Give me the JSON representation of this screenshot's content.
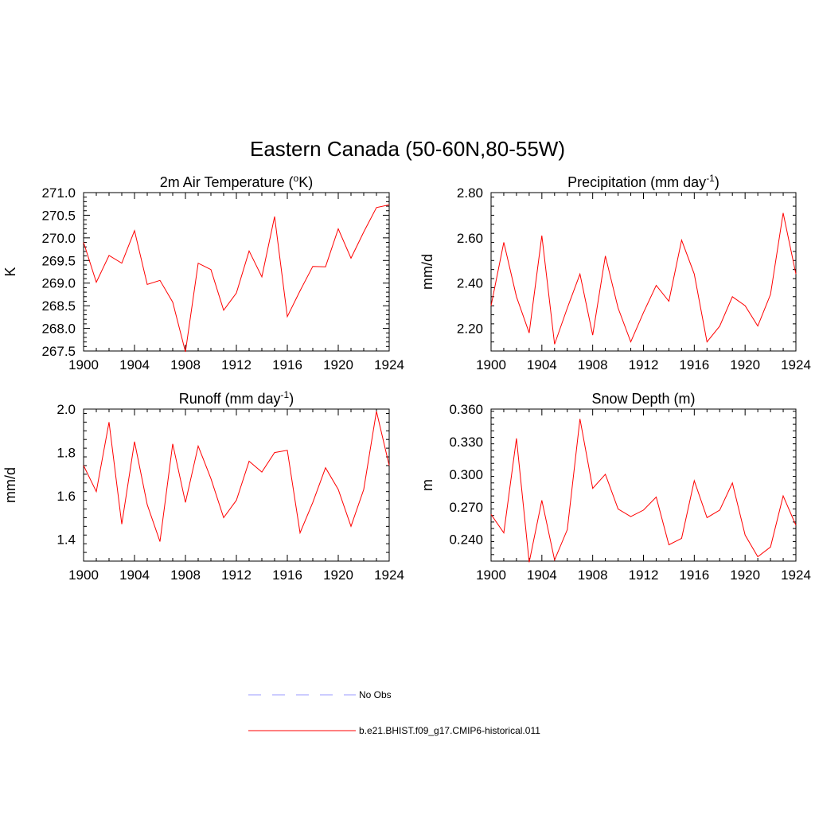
{
  "figure": {
    "title": "Eastern Canada (50-60N,80-55W)"
  },
  "legend": {
    "entries": [
      {
        "label": "No Obs",
        "color": "#9999ff",
        "dash": "dashed"
      },
      {
        "label": "b.e21.BHIST.f09_g17.CMIP6-historical.011",
        "color": "#ff0000",
        "dash": "solid"
      }
    ]
  },
  "chart_data": [
    {
      "type": "line",
      "title": "2m Air Temperature (°K)",
      "title_main": "2m Air Temperature (",
      "title_sup": "o",
      "title_tail": "K)",
      "xlabel": "",
      "ylabel": "K",
      "xlim": [
        1900,
        1924
      ],
      "ylim": [
        267.5,
        271.0
      ],
      "xticks": [
        1900,
        1904,
        1908,
        1912,
        1916,
        1920,
        1924
      ],
      "yticks": [
        "267.5",
        "268.0",
        "268.5",
        "269.0",
        "269.5",
        "270.0",
        "270.5",
        "271.0"
      ],
      "grid": false,
      "series": [
        {
          "color": "#ff0000",
          "x": [
            1900,
            1901,
            1902,
            1903,
            1904,
            1905,
            1906,
            1907,
            1908,
            1909,
            1910,
            1911,
            1912,
            1913,
            1914,
            1915,
            1916,
            1917,
            1918,
            1919,
            1920,
            1921,
            1922,
            1923,
            1924
          ],
          "y": [
            269.9,
            269.02,
            269.61,
            269.44,
            270.16,
            268.97,
            269.06,
            268.58,
            267.48,
            269.44,
            269.3,
            268.4,
            268.78,
            269.71,
            269.14,
            270.47,
            268.26,
            268.83,
            269.37,
            269.36,
            270.2,
            269.55,
            270.13,
            270.67,
            270.73
          ]
        }
      ]
    },
    {
      "type": "line",
      "title": "Precipitation (mm day-1)",
      "title_main": "Precipitation (mm day",
      "title_sup": "-1",
      "title_tail": ")",
      "xlabel": "",
      "ylabel": "mm/d",
      "xlim": [
        1900,
        1924
      ],
      "ylim": [
        2.1,
        2.8
      ],
      "xticks": [
        1900,
        1904,
        1908,
        1912,
        1916,
        1920,
        1924
      ],
      "yticks": [
        "2.20",
        "2.40",
        "2.60",
        "2.80"
      ],
      "grid": false,
      "series": [
        {
          "color": "#ff0000",
          "x": [
            1900,
            1901,
            1902,
            1903,
            1904,
            1905,
            1906,
            1907,
            1908,
            1909,
            1910,
            1911,
            1912,
            1913,
            1914,
            1915,
            1916,
            1917,
            1918,
            1919,
            1920,
            1921,
            1922,
            1923,
            1924
          ],
          "y": [
            2.3,
            2.58,
            2.34,
            2.18,
            2.61,
            2.13,
            2.29,
            2.44,
            2.17,
            2.52,
            2.29,
            2.14,
            2.27,
            2.39,
            2.32,
            2.59,
            2.44,
            2.14,
            2.21,
            2.34,
            2.3,
            2.21,
            2.35,
            2.71,
            2.44
          ]
        }
      ]
    },
    {
      "type": "line",
      "title": "Runoff (mm day-1)",
      "title_main": "Runoff (mm day",
      "title_sup": "-1",
      "title_tail": ")",
      "xlabel": "",
      "ylabel": "mm/d",
      "xlim": [
        1900,
        1924
      ],
      "ylim": [
        1.3,
        2.0
      ],
      "xticks": [
        1900,
        1904,
        1908,
        1912,
        1916,
        1920,
        1924
      ],
      "yticks": [
        "1.4",
        "1.6",
        "1.8",
        "2.0"
      ],
      "grid": false,
      "series": [
        {
          "color": "#ff0000",
          "x": [
            1900,
            1901,
            1902,
            1903,
            1904,
            1905,
            1906,
            1907,
            1908,
            1909,
            1910,
            1911,
            1912,
            1913,
            1914,
            1915,
            1916,
            1917,
            1918,
            1919,
            1920,
            1921,
            1922,
            1923,
            1924
          ],
          "y": [
            1.74,
            1.62,
            1.94,
            1.47,
            1.85,
            1.56,
            1.39,
            1.84,
            1.57,
            1.83,
            1.68,
            1.5,
            1.58,
            1.76,
            1.71,
            1.8,
            1.81,
            1.43,
            1.57,
            1.73,
            1.63,
            1.46,
            1.63,
            1.99,
            1.74
          ]
        }
      ]
    },
    {
      "type": "line",
      "title": "Snow Depth (m)",
      "title_main": "Snow Depth (m)",
      "title_sup": "",
      "title_tail": "",
      "xlabel": "",
      "ylabel": "m",
      "xlim": [
        1900,
        1924
      ],
      "ylim": [
        0.22,
        0.36
      ],
      "xticks": [
        1900,
        1904,
        1908,
        1912,
        1916,
        1920,
        1924
      ],
      "yticks": [
        "0.240",
        "0.270",
        "0.300",
        "0.330",
        "0.360"
      ],
      "grid": false,
      "series": [
        {
          "color": "#ff0000",
          "x": [
            1900,
            1901,
            1902,
            1903,
            1904,
            1905,
            1906,
            1907,
            1908,
            1909,
            1910,
            1911,
            1912,
            1913,
            1914,
            1915,
            1916,
            1917,
            1918,
            1919,
            1920,
            1921,
            1922,
            1923,
            1924
          ],
          "y": [
            0.263,
            0.246,
            0.333,
            0.219,
            0.276,
            0.221,
            0.249,
            0.351,
            0.287,
            0.3,
            0.268,
            0.261,
            0.267,
            0.279,
            0.235,
            0.241,
            0.294,
            0.26,
            0.267,
            0.292,
            0.244,
            0.224,
            0.233,
            0.28,
            0.253
          ]
        }
      ]
    }
  ]
}
